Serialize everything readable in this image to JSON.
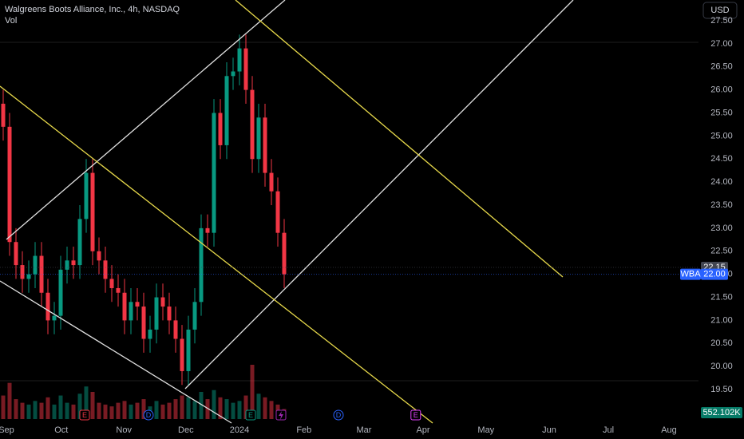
{
  "chart_data": {
    "type": "candlestick",
    "title": "Walgreens Boots Alliance, Inc., 4h, NASDAQ",
    "volume_title": "Vol",
    "currency": "USD",
    "symbol": "WBA",
    "open": [
      25.7,
      25.2,
      22.7,
      22.2,
      21.9,
      22.0,
      22.4,
      21.6,
      21.0,
      21.1,
      22.1,
      22.3,
      22.2,
      23.2,
      24.2,
      22.5,
      22.3,
      21.9,
      21.7,
      21.6,
      21.0,
      21.4,
      21.3,
      20.6,
      20.8,
      21.5,
      21.3,
      21.0,
      20.6,
      19.9,
      20.8,
      21.4,
      23.0,
      22.9,
      25.5,
      24.8,
      26.3,
      26.4,
      26.9,
      26.0,
      24.5,
      25.4,
      24.2,
      23.8,
      22.9
    ],
    "high": [
      26.0,
      25.5,
      23.0,
      22.5,
      22.3,
      22.7,
      22.7,
      21.9,
      21.4,
      22.4,
      22.6,
      22.6,
      23.5,
      24.5,
      24.5,
      22.8,
      22.6,
      22.2,
      22.0,
      21.9,
      21.7,
      21.7,
      21.6,
      21.1,
      21.8,
      21.8,
      21.6,
      21.3,
      20.9,
      21.1,
      21.7,
      23.3,
      23.3,
      25.8,
      25.8,
      26.6,
      26.7,
      27.2,
      27.2,
      26.3,
      25.7,
      25.7,
      24.5,
      24.1,
      23.2
    ],
    "low": [
      24.9,
      22.4,
      21.9,
      21.6,
      21.6,
      21.7,
      21.3,
      20.7,
      20.7,
      20.8,
      21.8,
      21.9,
      21.9,
      22.9,
      22.2,
      22.0,
      21.6,
      21.4,
      21.3,
      20.7,
      20.7,
      21.0,
      20.3,
      20.3,
      20.5,
      21.0,
      20.7,
      20.3,
      19.6,
      19.6,
      20.5,
      21.1,
      22.6,
      22.6,
      24.5,
      24.5,
      26.0,
      26.1,
      25.7,
      24.2,
      24.2,
      23.9,
      23.5,
      22.6,
      21.7
    ],
    "close": [
      25.2,
      22.7,
      22.2,
      21.9,
      22.0,
      22.4,
      21.6,
      21.0,
      21.1,
      22.1,
      22.3,
      22.2,
      23.2,
      24.2,
      22.5,
      22.3,
      21.9,
      21.7,
      21.6,
      21.0,
      21.4,
      21.3,
      20.6,
      20.8,
      21.5,
      21.3,
      21.0,
      20.6,
      19.9,
      20.8,
      21.4,
      23.0,
      22.9,
      25.5,
      24.8,
      26.3,
      26.4,
      26.9,
      26.0,
      24.5,
      25.4,
      24.2,
      23.8,
      22.9,
      22.0
    ],
    "volume": [
      1300000,
      2000000,
      1100000,
      900000,
      800000,
      1000000,
      900000,
      1200000,
      800000,
      1300000,
      900000,
      800000,
      1400000,
      1800000,
      1500000,
      900000,
      800000,
      700000,
      900000,
      1000000,
      800000,
      900000,
      1100000,
      700000,
      1000000,
      800000,
      900000,
      1100000,
      1300000,
      1200000,
      1000000,
      1500000,
      1100000,
      1600000,
      1200000,
      1100000,
      900000,
      1000000,
      1300000,
      3000000,
      1400000,
      1200000,
      1000000,
      800000,
      552102
    ],
    "volume_last_label": "552.102K",
    "up_color": "#089981",
    "down_color": "#f23645",
    "xlim": [
      -0.5,
      108.875
    ],
    "xticks": [
      {
        "value": 0.5,
        "label": "Sep"
      },
      {
        "value": 9.1,
        "label": "Oct"
      },
      {
        "value": 18.9,
        "label": "Nov"
      },
      {
        "value": 28.6,
        "label": "Dec"
      },
      {
        "value": 37,
        "label": "2024"
      },
      {
        "value": 47.1,
        "label": "Feb"
      },
      {
        "value": 56.5,
        "label": "Mar"
      },
      {
        "value": 65.75,
        "label": "Apr"
      },
      {
        "value": 75.6,
        "label": "May"
      },
      {
        "value": 85.5,
        "label": "Jun"
      },
      {
        "value": 94.75,
        "label": "Jul"
      },
      {
        "value": 104.25,
        "label": "Aug"
      }
    ],
    "ylim": [
      18.86,
      27.95
    ],
    "yticks": [
      {
        "value": 27.5,
        "label": "27.50"
      },
      {
        "value": 27,
        "label": "27.00"
      },
      {
        "value": 26.5,
        "label": "26.50"
      },
      {
        "value": 26,
        "label": "26.00"
      },
      {
        "value": 25.5,
        "label": "25.50"
      },
      {
        "value": 25,
        "label": "25.00"
      },
      {
        "value": 24.5,
        "label": "24.50"
      },
      {
        "value": 24,
        "label": "24.00"
      },
      {
        "value": 23.5,
        "label": "23.50"
      },
      {
        "value": 23,
        "label": "23.00"
      },
      {
        "value": 22.5,
        "label": "22.50"
      },
      {
        "value": 22,
        "label": "22.00"
      },
      {
        "value": 21.5,
        "label": "21.50"
      },
      {
        "value": 21,
        "label": "21.00"
      },
      {
        "value": 20.5,
        "label": "20.50"
      },
      {
        "value": 20,
        "label": "20.00"
      },
      {
        "value": 19.5,
        "label": "19.50"
      }
    ],
    "grid": false,
    "price_labels": [
      {
        "value": 22.15,
        "label": "22.15",
        "color": "#434651"
      },
      {
        "value": 22.0,
        "label": "22.00",
        "color": "#2962ff"
      }
    ],
    "events": [
      {
        "x": 12.75,
        "label": "E",
        "color": "#f23645"
      },
      {
        "x": 22.75,
        "label": "D",
        "color": "#2962ff"
      },
      {
        "x": 38.75,
        "label": "E",
        "color": "#089981"
      },
      {
        "x": 43.5,
        "color": "#9c27b0"
      },
      {
        "x": 52.5,
        "label": "D",
        "color": "#2962ff"
      },
      {
        "x": 64.6,
        "label": "E",
        "color": "#e040fb"
      }
    ]
  }
}
